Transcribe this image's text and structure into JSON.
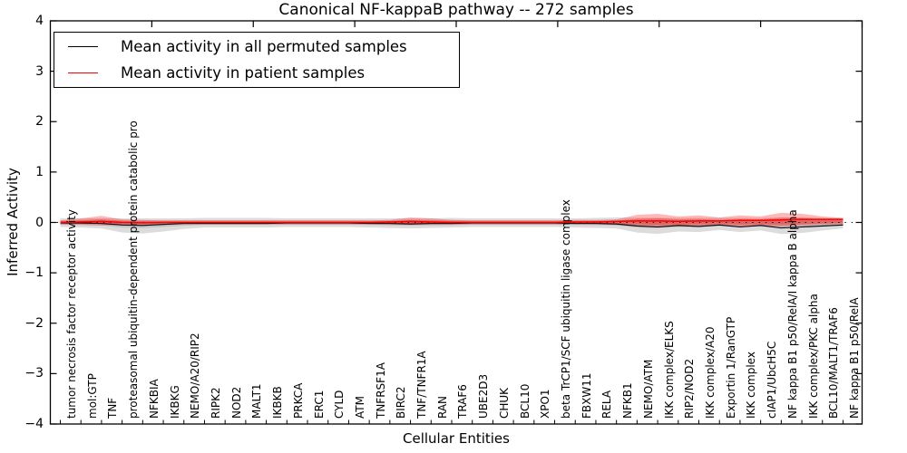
{
  "figure_bg": "#ffffff",
  "accent_colors": {
    "patient_line": "#ff0000",
    "permuted_line": "#000000"
  },
  "chart_data": {
    "type": "line",
    "title": "Canonical NF-kappaB pathway -- 272 samples",
    "xlabel": "Cellular Entities",
    "ylabel": "Inferred Activity",
    "ylim": [
      -4,
      4
    ],
    "yticks": [
      4,
      3,
      2,
      1,
      0,
      -1,
      -2,
      -3,
      -4
    ],
    "grid": false,
    "zero_line": "dotted",
    "legend_position": "upper left",
    "categories": [
      "tumor necrosis factor receptor activity",
      "mol:GTP",
      "TNF",
      "proteasomal ubiquitin-dependent protein catabolic pro",
      "NFKBIA",
      "IKBKG",
      "NEMO/A20/RIP2",
      "RIPK2",
      "NOD2",
      "MALT1",
      "IKBKB",
      "PRKCA",
      "ERC1",
      "CYLD",
      "ATM",
      "TNFRSF1A",
      "BIRC2",
      "TNF/TNFR1A",
      "RAN",
      "TRAF6",
      "UBE2D3",
      "CHUK",
      "BCL10",
      "XPO1",
      "beta TrCP1/SCF ubiquitin ligase complex",
      "FBXW11",
      "RELA",
      "NFKB1",
      "NEMO/ATM",
      "IKK complex/ELKS",
      "RIP2/NOD2",
      "IKK complex/A20",
      "Exportin 1/RanGTP",
      "IKK complex",
      "cIAP1/UbcH5C",
      "NF kappa B1 p50/RelA/I kappa B alpha",
      "IKK complex/PKC alpha",
      "BCL10/MALT1/TRAF6",
      "NF kappa B1 p50/RelA"
    ],
    "series": [
      {
        "name": "Mean activity in all permuted samples",
        "color": "#000000",
        "values": [
          -0.01,
          -0.01,
          -0.02,
          -0.05,
          -0.06,
          -0.04,
          -0.02,
          -0.02,
          -0.02,
          -0.02,
          -0.02,
          -0.01,
          -0.01,
          -0.01,
          -0.01,
          -0.02,
          -0.02,
          -0.03,
          -0.02,
          -0.02,
          -0.01,
          -0.01,
          -0.01,
          -0.01,
          -0.01,
          -0.02,
          -0.02,
          -0.03,
          -0.07,
          -0.09,
          -0.06,
          -0.08,
          -0.05,
          -0.09,
          -0.06,
          -0.11,
          -0.09,
          -0.07,
          -0.05
        ]
      },
      {
        "name": "Mean activity in patient samples",
        "color": "#ff0000",
        "values": [
          0,
          0.01,
          0.02,
          0,
          -0.01,
          0,
          0,
          0,
          0,
          0,
          0,
          0,
          0,
          0,
          0,
          0,
          0.01,
          0.02,
          0.01,
          0,
          0,
          0,
          0,
          0,
          0,
          0.01,
          0.01,
          0.02,
          0.03,
          0.03,
          0.02,
          0.03,
          0.03,
          0.04,
          0.04,
          0.05,
          0.06,
          0.06,
          0.06
        ]
      }
    ],
    "bands": [
      {
        "name": "permuted samples spread",
        "color": "rgba(130,130,130,0.28)",
        "upper": [
          0.08,
          0.08,
          0.08,
          0.08,
          0.08,
          0.08,
          0.08,
          0.09,
          0.09,
          0.09,
          0.09,
          0.08,
          0.08,
          0.08,
          0.08,
          0.08,
          0.08,
          0.08,
          0.08,
          0.09,
          0.08,
          0.08,
          0.08,
          0.08,
          0.08,
          0.08,
          0.09,
          0.1,
          0.09,
          0.09,
          0.09,
          0.09,
          0.09,
          0.09,
          0.09,
          0.1,
          0.1,
          0.09,
          0.08
        ],
        "lower": [
          -0.09,
          -0.1,
          -0.12,
          -0.2,
          -0.22,
          -0.18,
          -0.13,
          -0.1,
          -0.1,
          -0.1,
          -0.1,
          -0.09,
          -0.09,
          -0.09,
          -0.09,
          -0.1,
          -0.11,
          -0.12,
          -0.11,
          -0.1,
          -0.09,
          -0.09,
          -0.09,
          -0.09,
          -0.09,
          -0.1,
          -0.11,
          -0.12,
          -0.2,
          -0.23,
          -0.18,
          -0.19,
          -0.15,
          -0.19,
          -0.16,
          -0.23,
          -0.21,
          -0.16,
          -0.12
        ]
      },
      {
        "name": "patient samples spread",
        "color": "rgba(255,0,0,0.28)",
        "upper": [
          0.04,
          0.08,
          0.13,
          0.06,
          0.05,
          0.04,
          0.04,
          0.04,
          0.04,
          0.04,
          0.04,
          0.04,
          0.04,
          0.04,
          0.04,
          0.04,
          0.05,
          0.1,
          0.08,
          0.05,
          0.04,
          0.04,
          0.04,
          0.04,
          0.04,
          0.05,
          0.05,
          0.06,
          0.15,
          0.17,
          0.12,
          0.14,
          0.1,
          0.14,
          0.12,
          0.19,
          0.17,
          0.12,
          0.09
        ],
        "lower": [
          -0.04,
          -0.05,
          -0.06,
          -0.05,
          -0.05,
          -0.04,
          -0.04,
          -0.04,
          -0.04,
          -0.04,
          -0.04,
          -0.04,
          -0.04,
          -0.04,
          -0.04,
          -0.04,
          -0.05,
          -0.05,
          -0.05,
          -0.05,
          -0.04,
          -0.04,
          -0.04,
          -0.04,
          -0.04,
          -0.04,
          -0.04,
          -0.05,
          -0.08,
          -0.1,
          -0.08,
          -0.08,
          -0.06,
          -0.08,
          -0.07,
          -0.08,
          -0.06,
          -0.04,
          -0.03
        ]
      }
    ]
  }
}
